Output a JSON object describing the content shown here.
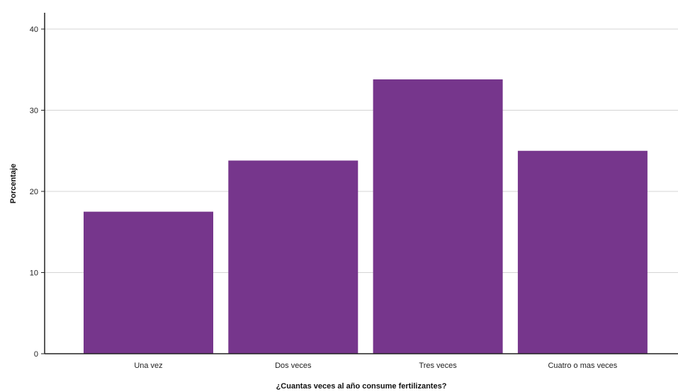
{
  "chart_data": {
    "type": "bar",
    "title": "",
    "xlabel": "¿Cuantas veces al año consume fertilizantes?",
    "ylabel": "Porcentaje",
    "categories": [
      "Una vez",
      "Dos veces",
      "Tres veces",
      "Cuatro o mas veces"
    ],
    "values": [
      17.5,
      23.8,
      33.8,
      25.0
    ],
    "ylim": [
      0,
      40
    ],
    "yticks": [
      0,
      10,
      20,
      30,
      40
    ],
    "grid": true,
    "legend": "none",
    "bar_color": "#76368C"
  }
}
